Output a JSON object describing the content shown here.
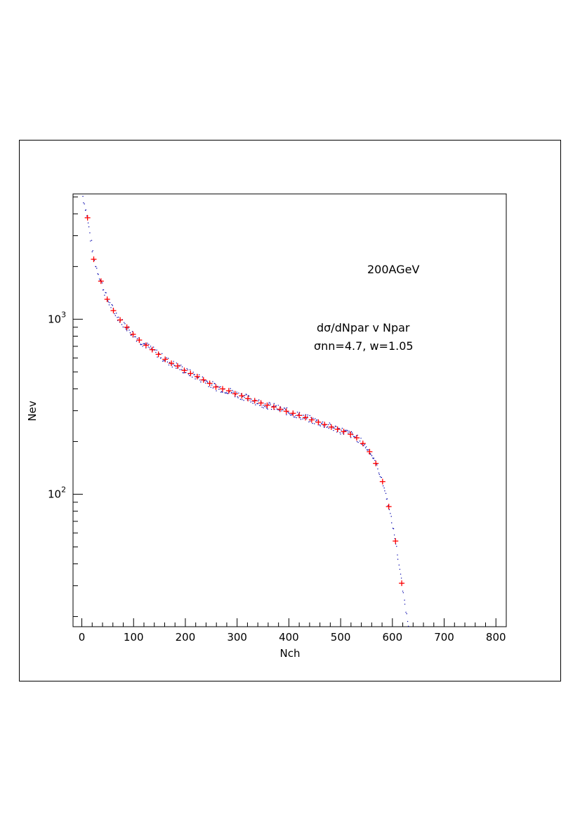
{
  "chart_data": {
    "type": "scatter",
    "xlabel": "Nch",
    "ylabel": "Nev",
    "xlim": [
      -17,
      820
    ],
    "ylim": [
      17.5,
      5200
    ],
    "y_scale": "log",
    "x_ticks": [
      "0",
      "100",
      "200",
      "300",
      "400",
      "500",
      "600",
      "700",
      "800"
    ],
    "y_ticks": [
      {
        "base": "10",
        "exp": "2"
      },
      {
        "base": "10",
        "exp": "3"
      }
    ],
    "annotations": {
      "energy": "200AGeV",
      "description": "dσ/dNpar v Npar",
      "params": "σnn=4.7, w=1.05"
    },
    "grid": false,
    "series": [
      {
        "marker": "cross",
        "color": "#ff0000",
        "x": [
          11,
          23,
          37,
          49,
          61,
          74,
          87,
          99,
          111,
          124,
          136,
          148,
          161,
          173,
          185,
          198,
          210,
          223,
          235,
          247,
          259,
          272,
          284,
          296,
          309,
          321,
          334,
          346,
          358,
          371,
          383,
          395,
          408,
          420,
          432,
          444,
          457,
          469,
          482,
          494,
          506,
          519,
          531,
          543,
          556,
          568,
          581,
          593,
          606,
          618
        ],
        "y": [
          3800,
          2200,
          1650,
          1300,
          1120,
          990,
          900,
          820,
          760,
          710,
          670,
          630,
          590,
          560,
          540,
          510,
          490,
          470,
          450,
          430,
          410,
          400,
          390,
          375,
          365,
          352,
          342,
          332,
          322,
          315,
          306,
          298,
          290,
          282,
          274,
          266,
          258,
          250,
          242,
          235,
          228,
          220,
          210,
          195,
          175,
          150,
          118,
          85,
          54,
          31
        ]
      },
      {
        "marker": "dot",
        "color": "#0000aa"
      }
    ]
  }
}
